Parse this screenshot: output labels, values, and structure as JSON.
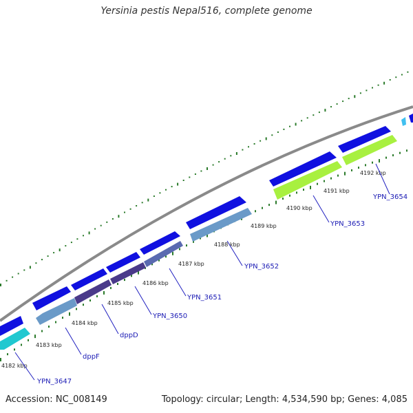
{
  "title": "Yersinia pestis Nepal516, complete genome",
  "footer": {
    "accession_label": "Accession:",
    "accession": "NC_008149",
    "topology_label": "Topology:",
    "topology": "circular;",
    "length_label": "Length:",
    "length": "4,534,590 bp;",
    "genes_label": "Genes:",
    "genes": "4,085"
  },
  "colors": {
    "backbone": "#8c8c8c",
    "forward_gene": "#1010e0",
    "tick": "#2a7a2a",
    "label_line": "#2020c0",
    "cyan": "#20c8d0",
    "steelblue": "#6a9ac8",
    "purple": "#4a3a8a",
    "lime": "#a8f040"
  },
  "scale_ticks": [
    {
      "label": "4182 kbp"
    },
    {
      "label": "4183 kbp"
    },
    {
      "label": "4184 kbp"
    },
    {
      "label": "4185 kbp"
    },
    {
      "label": "4186 kbp"
    },
    {
      "label": "4187 kbp"
    },
    {
      "label": "4188 kbp"
    },
    {
      "label": "4189 kbp"
    },
    {
      "label": "4190 kbp"
    },
    {
      "label": "4191 kbp"
    },
    {
      "label": "4192 kbp"
    }
  ],
  "gene_labels": [
    {
      "name": "YPN_3647"
    },
    {
      "name": "dppF"
    },
    {
      "name": "dppD"
    },
    {
      "name": "YPN_3650"
    },
    {
      "name": "YPN_3651"
    },
    {
      "name": "YPN_3652"
    },
    {
      "name": "YPN_3653"
    },
    {
      "name": "YPN_3654"
    }
  ]
}
